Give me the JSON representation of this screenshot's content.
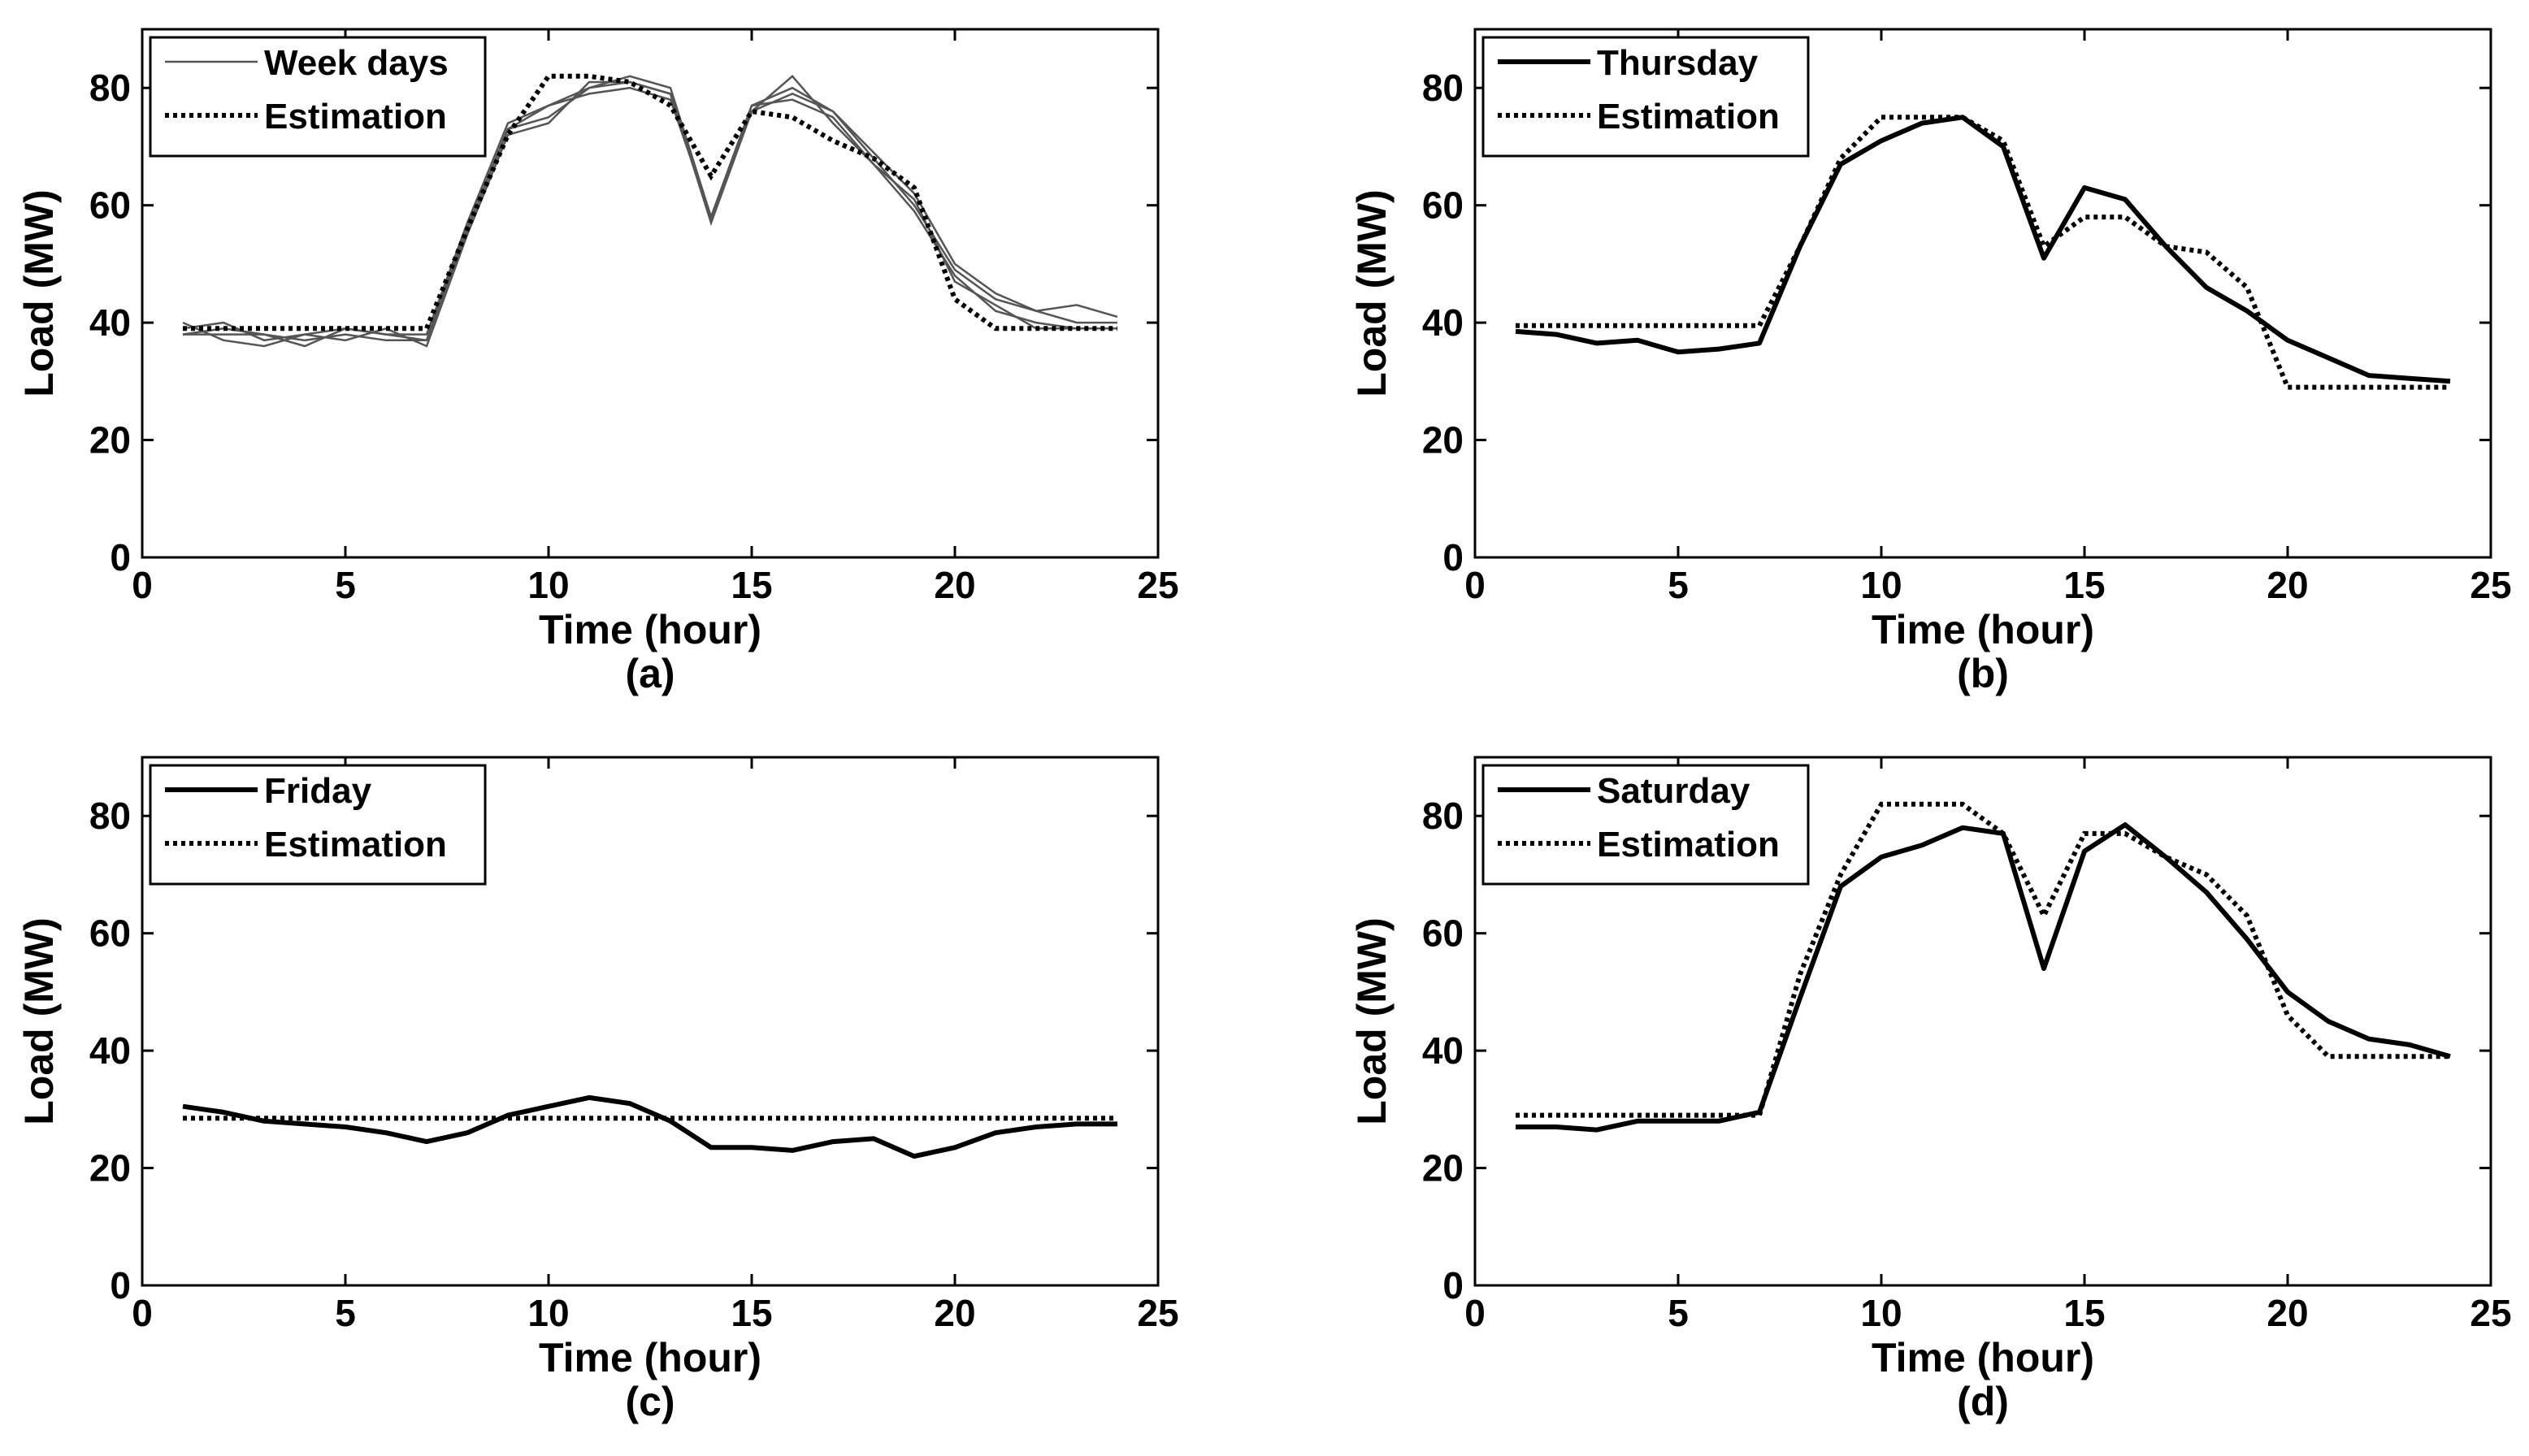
{
  "colors": {
    "axis": "#000000",
    "measured": "#000000",
    "weekday_lines": "#555555",
    "background": "#ffffff"
  },
  "chart_data": [
    {
      "type": "line",
      "caption": "(a)",
      "xlabel": "Time (hour)",
      "ylabel": "Load (MW)",
      "xlim": [
        0,
        25
      ],
      "ylim": [
        0,
        90
      ],
      "xticks": [
        0,
        5,
        10,
        15,
        20,
        25
      ],
      "yticks": [
        0,
        20,
        40,
        60,
        80
      ],
      "grid": false,
      "legend_position": "top-left",
      "legend": [
        {
          "label": "Week days",
          "style": "solid-thin"
        },
        {
          "label": "Estimation",
          "style": "dotted"
        }
      ],
      "series": [
        {
          "style": "solid-thin",
          "x": [
            1,
            2,
            3,
            4,
            5,
            6,
            7,
            8,
            9,
            10,
            11,
            12,
            13,
            14,
            15,
            16,
            17,
            18,
            19,
            20,
            21,
            22,
            23,
            24
          ],
          "y": [
            39,
            40,
            37,
            38,
            39,
            38,
            38,
            57,
            74,
            77,
            80,
            81,
            79,
            58,
            77,
            80,
            76,
            68,
            60,
            49,
            44,
            42,
            43,
            41
          ]
        },
        {
          "style": "solid-thin",
          "x": [
            1,
            2,
            3,
            4,
            5,
            6,
            7,
            8,
            9,
            10,
            11,
            12,
            13,
            14,
            15,
            16,
            17,
            18,
            19,
            20,
            21,
            22,
            23,
            24
          ],
          "y": [
            38,
            38,
            38,
            37,
            38,
            37,
            37,
            56,
            73,
            75,
            80,
            82,
            80,
            58,
            76,
            82,
            74,
            67,
            59,
            48,
            42,
            40,
            39,
            39
          ]
        },
        {
          "style": "solid-thin",
          "x": [
            1,
            2,
            3,
            4,
            5,
            6,
            7,
            8,
            9,
            10,
            11,
            12,
            13,
            14,
            15,
            16,
            17,
            18,
            19,
            20,
            21,
            22,
            23,
            24
          ],
          "y": [
            40,
            37,
            36,
            38,
            37,
            39,
            36,
            55,
            72,
            74,
            81,
            81,
            79,
            57,
            76,
            79,
            76,
            69,
            62,
            50,
            45,
            42,
            40,
            40
          ]
        },
        {
          "style": "solid-thin",
          "x": [
            1,
            2,
            3,
            4,
            5,
            6,
            7,
            8,
            9,
            10,
            11,
            12,
            13,
            14,
            15,
            16,
            17,
            18,
            19,
            20,
            21,
            22,
            23,
            24
          ],
          "y": [
            38,
            39,
            38,
            36,
            39,
            38,
            37,
            56,
            73,
            77,
            79,
            80,
            78,
            58,
            77,
            78,
            75,
            67,
            61,
            47,
            43,
            39,
            39,
            39
          ]
        },
        {
          "style": "dotted",
          "x": [
            1,
            2,
            3,
            4,
            5,
            6,
            7,
            8,
            9,
            10,
            11,
            12,
            13,
            14,
            15,
            16,
            17,
            18,
            19,
            20,
            21,
            22,
            23,
            24
          ],
          "y": [
            39,
            39,
            39,
            39,
            39,
            39,
            39,
            56,
            72,
            82,
            82,
            81,
            77,
            65,
            76,
            75,
            71,
            68,
            63,
            44,
            39,
            39,
            39,
            39
          ]
        }
      ]
    },
    {
      "type": "line",
      "caption": "(b)",
      "xlabel": "Time (hour)",
      "ylabel": "Load (MW)",
      "xlim": [
        0,
        25
      ],
      "ylim": [
        0,
        90
      ],
      "xticks": [
        0,
        5,
        10,
        15,
        20,
        25
      ],
      "yticks": [
        0,
        20,
        40,
        60,
        80
      ],
      "grid": false,
      "legend_position": "top-left",
      "legend": [
        {
          "label": "Thursday",
          "style": "solid-thick"
        },
        {
          "label": "Estimation",
          "style": "dotted"
        }
      ],
      "series": [
        {
          "name": "Thursday",
          "style": "solid-thick",
          "x": [
            1,
            2,
            3,
            4,
            5,
            6,
            7,
            8,
            9,
            10,
            11,
            12,
            13,
            14,
            15,
            16,
            17,
            18,
            19,
            20,
            21,
            22,
            23,
            24
          ],
          "y": [
            38.5,
            38,
            36.5,
            37,
            35,
            35.5,
            36.5,
            53,
            67,
            71,
            74,
            75,
            70,
            51,
            63,
            61,
            53,
            46,
            42,
            37,
            34,
            31,
            30.5,
            30
          ]
        },
        {
          "name": "Estimation",
          "style": "dotted",
          "x": [
            1,
            2,
            3,
            4,
            5,
            6,
            7,
            8,
            9,
            10,
            11,
            12,
            13,
            14,
            15,
            16,
            17,
            18,
            19,
            20,
            21,
            22,
            23,
            24
          ],
          "y": [
            39.5,
            39.5,
            39.5,
            39.5,
            39.5,
            39.5,
            39.5,
            53,
            68,
            75,
            75,
            75,
            71,
            53,
            58,
            58,
            53,
            52,
            46,
            29,
            29,
            29,
            29,
            29
          ]
        }
      ]
    },
    {
      "type": "line",
      "caption": "(c)",
      "xlabel": "Time (hour)",
      "ylabel": "Load (MW)",
      "xlim": [
        0,
        25
      ],
      "ylim": [
        0,
        90
      ],
      "xticks": [
        0,
        5,
        10,
        15,
        20,
        25
      ],
      "yticks": [
        0,
        20,
        40,
        60,
        80
      ],
      "grid": false,
      "legend_position": "top-left",
      "legend": [
        {
          "label": "Friday",
          "style": "solid-thick"
        },
        {
          "label": "Estimation",
          "style": "dotted"
        }
      ],
      "series": [
        {
          "name": "Friday",
          "style": "solid-thick",
          "x": [
            1,
            2,
            3,
            4,
            5,
            6,
            7,
            8,
            9,
            10,
            11,
            12,
            13,
            14,
            15,
            16,
            17,
            18,
            19,
            20,
            21,
            22,
            23,
            24
          ],
          "y": [
            30.5,
            29.5,
            28,
            27.5,
            27,
            26,
            24.5,
            26,
            29,
            30.5,
            32,
            31,
            28,
            23.5,
            23.5,
            23,
            24.5,
            25,
            22,
            23.5,
            26,
            27,
            27.5,
            27.5
          ]
        },
        {
          "name": "Estimation",
          "style": "dotted",
          "x": [
            1,
            24
          ],
          "y": [
            28.5,
            28.5
          ]
        }
      ]
    },
    {
      "type": "line",
      "caption": "(d)",
      "xlabel": "Time (hour)",
      "ylabel": "Load (MW)",
      "xlim": [
        0,
        25
      ],
      "ylim": [
        0,
        90
      ],
      "xticks": [
        0,
        5,
        10,
        15,
        20,
        25
      ],
      "yticks": [
        0,
        20,
        40,
        60,
        80
      ],
      "grid": false,
      "legend_position": "top-left",
      "legend": [
        {
          "label": "Saturday",
          "style": "solid-thick"
        },
        {
          "label": "Estimation",
          "style": "dotted"
        }
      ],
      "series": [
        {
          "name": "Saturday",
          "style": "solid-thick",
          "x": [
            1,
            2,
            3,
            4,
            5,
            6,
            7,
            8,
            9,
            10,
            11,
            12,
            13,
            14,
            15,
            16,
            17,
            18,
            19,
            20,
            21,
            22,
            23,
            24
          ],
          "y": [
            27,
            27,
            26.5,
            28,
            28,
            28,
            29.5,
            49,
            68,
            73,
            75,
            78,
            77,
            54,
            74,
            78.5,
            73,
            67,
            59,
            50,
            45,
            42,
            41,
            39
          ]
        },
        {
          "name": "Estimation",
          "style": "dotted",
          "x": [
            1,
            2,
            3,
            4,
            5,
            6,
            7,
            8,
            9,
            10,
            11,
            12,
            13,
            14,
            15,
            16,
            17,
            18,
            19,
            20,
            21,
            22,
            23,
            24
          ],
          "y": [
            29,
            29,
            29,
            29,
            29,
            29,
            29,
            53,
            70,
            82,
            82,
            82,
            77,
            63,
            77,
            77,
            73,
            70,
            63,
            46,
            39,
            39,
            39,
            39
          ]
        }
      ]
    }
  ]
}
